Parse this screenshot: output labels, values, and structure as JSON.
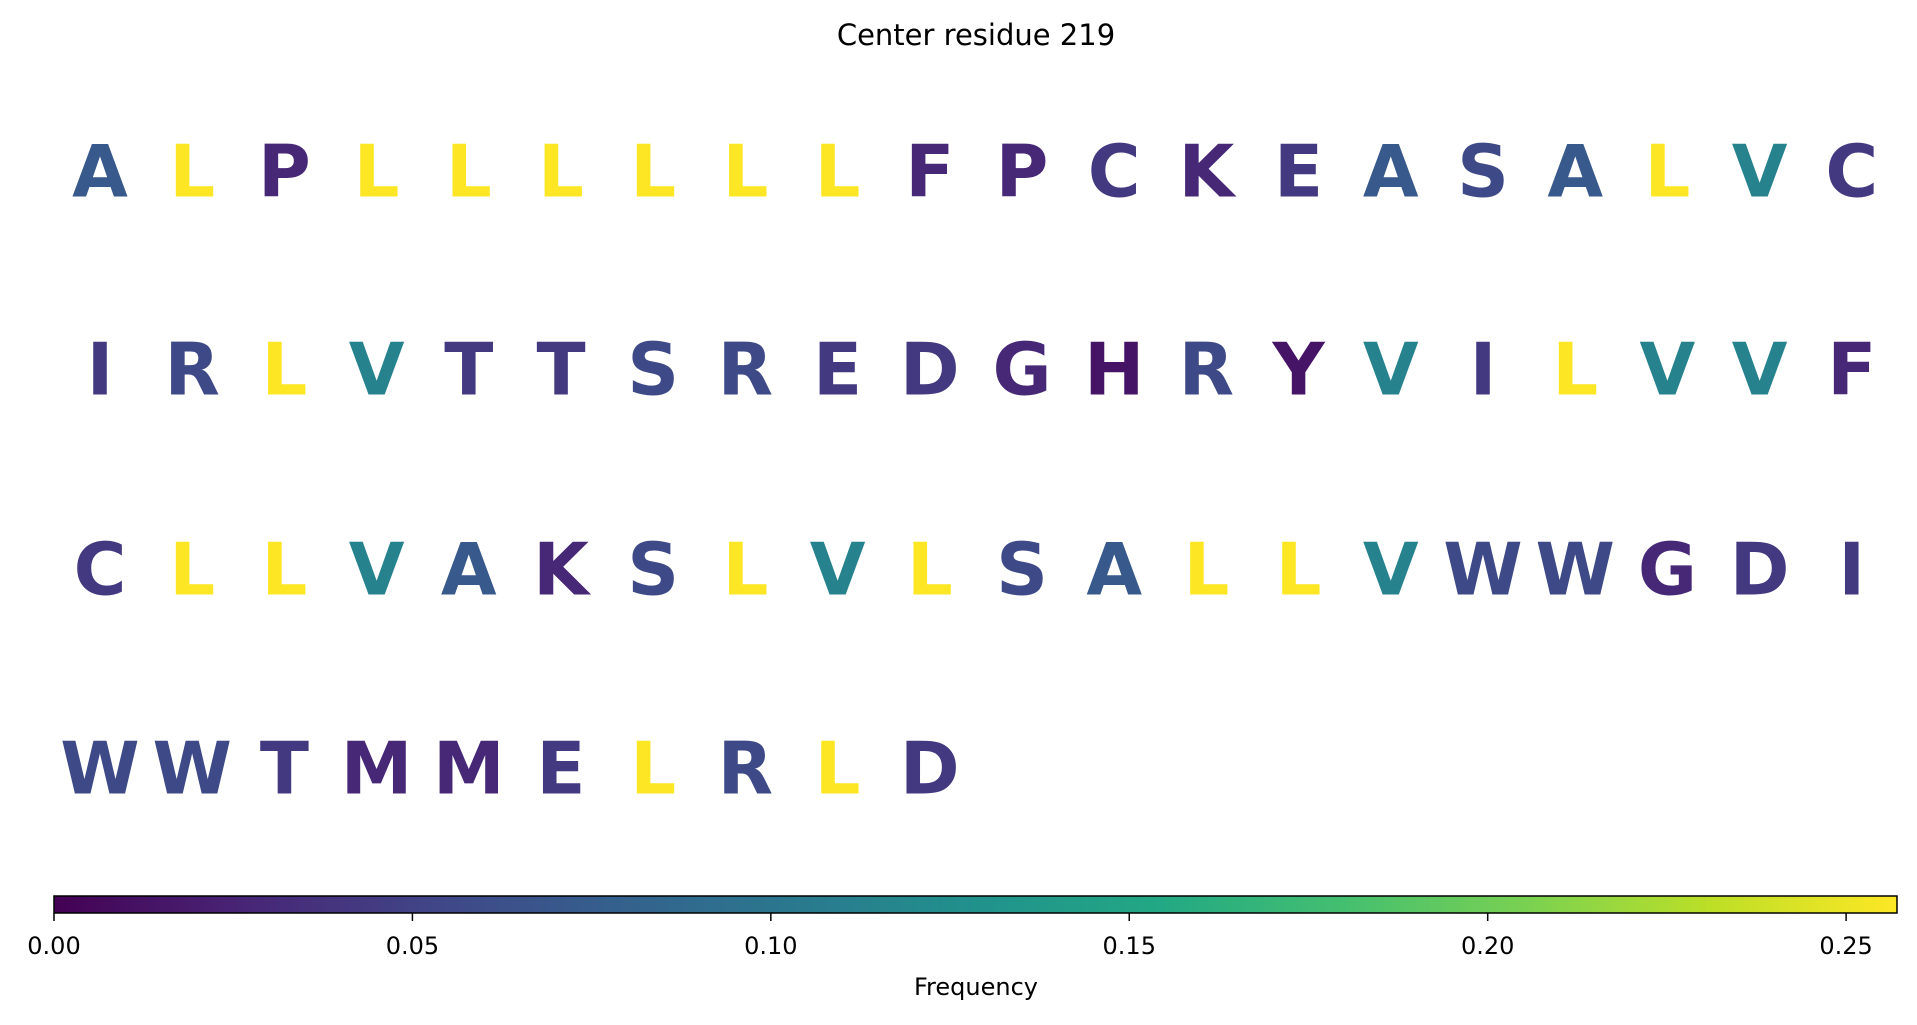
{
  "chart_data": {
    "type": "residue-heatmap",
    "title": "Center residue 219",
    "letters": [
      "A",
      "L",
      "P",
      "L",
      "L",
      "L",
      "L",
      "L",
      "L",
      "F",
      "P",
      "C",
      "K",
      "E",
      "A",
      "S",
      "A",
      "L",
      "V",
      "C",
      "I",
      "R",
      "L",
      "V",
      "T",
      "T",
      "S",
      "R",
      "E",
      "D",
      "G",
      "H",
      "R",
      "Y",
      "V",
      "I",
      "L",
      "V",
      "V",
      "F",
      "C",
      "L",
      "L",
      "V",
      "A",
      "K",
      "S",
      "L",
      "V",
      "L",
      "S",
      "A",
      "L",
      "L",
      "V",
      "W",
      "W",
      "G",
      "D",
      "I",
      "W",
      "W",
      "T",
      "M",
      "M",
      "E",
      "L",
      "R",
      "L",
      "D"
    ],
    "values": [
      0.0714,
      0.2571,
      0.0286,
      0.2571,
      0.2571,
      0.2571,
      0.2571,
      0.2571,
      0.2571,
      0.0286,
      0.0286,
      0.0429,
      0.0286,
      0.0429,
      0.0714,
      0.0571,
      0.0714,
      0.2571,
      0.1143,
      0.0429,
      0.0429,
      0.0571,
      0.2571,
      0.1143,
      0.0429,
      0.0429,
      0.0571,
      0.0571,
      0.0429,
      0.0429,
      0.0286,
      0.0143,
      0.0571,
      0.0143,
      0.1143,
      0.0429,
      0.2571,
      0.1143,
      0.1143,
      0.0286,
      0.0429,
      0.2571,
      0.2571,
      0.1143,
      0.0714,
      0.0286,
      0.0571,
      0.2571,
      0.1143,
      0.2571,
      0.0571,
      0.0714,
      0.2571,
      0.2571,
      0.1143,
      0.0571,
      0.0571,
      0.0286,
      0.0429,
      0.0429,
      0.0571,
      0.0571,
      0.0429,
      0.0286,
      0.0286,
      0.0429,
      0.2571,
      0.0571,
      0.2571,
      0.0429
    ],
    "colormap": "viridis",
    "clim": [
      0,
      0.2571
    ],
    "cticks": [
      {
        "value": 0,
        "label": "0.00"
      },
      {
        "value": 0.05,
        "label": "0.05"
      },
      {
        "value": 0.1,
        "label": "0.10"
      },
      {
        "value": 0.15,
        "label": "0.15"
      },
      {
        "value": 0.2,
        "label": "0.20"
      },
      {
        "value": 0.25,
        "label": "0.25"
      }
    ],
    "colorbar_label": "Frequency"
  }
}
